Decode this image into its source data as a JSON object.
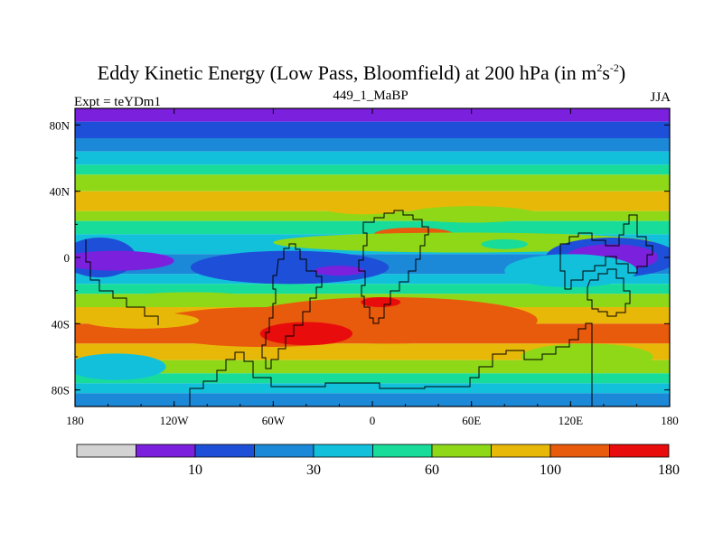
{
  "header": {
    "title_main": "Eddy Kinetic Energy (Low Pass, Bloomfield) at 200 hPa (in m",
    "title_sup1": "2",
    "title_s": "s",
    "title_sup2": "-2",
    "title_close": ")",
    "expt": "Expt = teYDm1",
    "subtitle": "449_1_MaBP",
    "season": "JJA"
  },
  "chart_data": {
    "type": "heatmap",
    "title": "Eddy Kinetic Energy (Low Pass, Bloomfield) at 200 hPa (in m2s-2)",
    "x_range": [
      -180,
      180
    ],
    "y_range": [
      -90,
      90
    ],
    "x_ticks": [
      {
        "value": -180,
        "label": "180"
      },
      {
        "value": -120,
        "label": "120W"
      },
      {
        "value": -60,
        "label": "60W"
      },
      {
        "value": 0,
        "label": "0"
      },
      {
        "value": 60,
        "label": "60E"
      },
      {
        "value": 120,
        "label": "120E"
      },
      {
        "value": 180,
        "label": "180"
      }
    ],
    "y_ticks": [
      {
        "value": 80,
        "label": "80N"
      },
      {
        "value": 40,
        "label": "40N"
      },
      {
        "value": 0,
        "label": "0"
      },
      {
        "value": -40,
        "label": "40S"
      },
      {
        "value": -80,
        "label": "80S"
      }
    ],
    "colorbar": {
      "colors": [
        "#d3d3d3",
        "#7b20dc",
        "#1e4fd8",
        "#1c88d8",
        "#12c0dc",
        "#18dc9a",
        "#8ed818",
        "#e8b808",
        "#e85a0c",
        "#e80c0c"
      ],
      "labels": [
        {
          "after_box": 1,
          "text": "10"
        },
        {
          "after_box": 3,
          "text": "30"
        },
        {
          "after_box": 5,
          "text": "60"
        },
        {
          "after_box": 7,
          "text": "100"
        },
        {
          "after_box": 9,
          "text": "180"
        }
      ]
    },
    "zonal_bands": [
      {
        "lat_min": 82,
        "lat_max": 90,
        "level": 1
      },
      {
        "lat_min": 72,
        "lat_max": 82,
        "level": 2
      },
      {
        "lat_min": 64,
        "lat_max": 72,
        "level": 3
      },
      {
        "lat_min": 56,
        "lat_max": 64,
        "level": 4
      },
      {
        "lat_min": 50,
        "lat_max": 56,
        "level": 5
      },
      {
        "lat_min": 40,
        "lat_max": 50,
        "level": 6
      },
      {
        "lat_min": 28,
        "lat_max": 40,
        "level": 7
      },
      {
        "lat_min": 22,
        "lat_max": 28,
        "level": 6
      },
      {
        "lat_min": 14,
        "lat_max": 22,
        "level": 5
      },
      {
        "lat_min": 2,
        "lat_max": 14,
        "level": 4
      },
      {
        "lat_min": -10,
        "lat_max": 2,
        "level": 3
      },
      {
        "lat_min": -16,
        "lat_max": -10,
        "level": 4
      },
      {
        "lat_min": -22,
        "lat_max": -16,
        "level": 5
      },
      {
        "lat_min": -30,
        "lat_max": -22,
        "level": 6
      },
      {
        "lat_min": -40,
        "lat_max": -30,
        "level": 7
      },
      {
        "lat_min": -52,
        "lat_max": -40,
        "level": 8
      },
      {
        "lat_min": -62,
        "lat_max": -52,
        "level": 7
      },
      {
        "lat_min": -70,
        "lat_max": -62,
        "level": 6
      },
      {
        "lat_min": -76,
        "lat_max": -70,
        "level": 5
      },
      {
        "lat_min": -82,
        "lat_max": -76,
        "level": 4
      },
      {
        "lat_min": -90,
        "lat_max": -82,
        "level": 3
      }
    ],
    "features": [
      {
        "lon": 25,
        "lat": 14,
        "rlon": 24,
        "rlat": 4,
        "level": 8
      },
      {
        "lon": 55,
        "lat": 9,
        "rlon": 115,
        "rlat": 6,
        "level": 6
      },
      {
        "lon": 80,
        "lat": 8,
        "rlon": 14,
        "rlat": 3,
        "level": 5
      },
      {
        "lon": 145,
        "lat": 0,
        "rlon": 40,
        "rlat": 12,
        "level": 2
      },
      {
        "lon": 145,
        "lat": 0,
        "rlon": 28,
        "rlat": 8,
        "level": 1
      },
      {
        "lon": -165,
        "lat": 0,
        "rlon": 22,
        "rlat": 12,
        "level": 2
      },
      {
        "lon": -155,
        "lat": -2,
        "rlon": 35,
        "rlat": 6,
        "level": 1
      },
      {
        "lon": -50,
        "lat": -6,
        "rlon": 60,
        "rlat": 10,
        "level": 2
      },
      {
        "lon": -20,
        "lat": -8,
        "rlon": 15,
        "rlat": 3,
        "level": 1
      },
      {
        "lon": 120,
        "lat": -8,
        "rlon": 40,
        "rlat": 10,
        "level": 4
      },
      {
        "lon": -5,
        "lat": 30,
        "rlon": 25,
        "rlat": 4,
        "level": 7
      },
      {
        "lon": 60,
        "lat": 26,
        "rlon": 40,
        "rlat": 5,
        "level": 6
      },
      {
        "lon": -110,
        "lat": -25,
        "rlon": 40,
        "rlat": 4,
        "level": 6
      },
      {
        "lon": 10,
        "lat": -38,
        "rlon": 90,
        "rlat": 14,
        "level": 8
      },
      {
        "lon": -65,
        "lat": -42,
        "rlon": 75,
        "rlat": 12,
        "level": 8
      },
      {
        "lon": -140,
        "lat": -38,
        "rlon": 35,
        "rlat": 5,
        "level": 7
      },
      {
        "lon": -40,
        "lat": -46,
        "rlon": 28,
        "rlat": 7,
        "level": 9
      },
      {
        "lon": 5,
        "lat": -27,
        "rlon": 12,
        "rlat": 3,
        "level": 9
      },
      {
        "lon": 130,
        "lat": -60,
        "rlon": 40,
        "rlat": 8,
        "level": 6
      },
      {
        "lon": -155,
        "lat": -66,
        "rlon": 30,
        "rlat": 8,
        "level": 4
      }
    ]
  }
}
